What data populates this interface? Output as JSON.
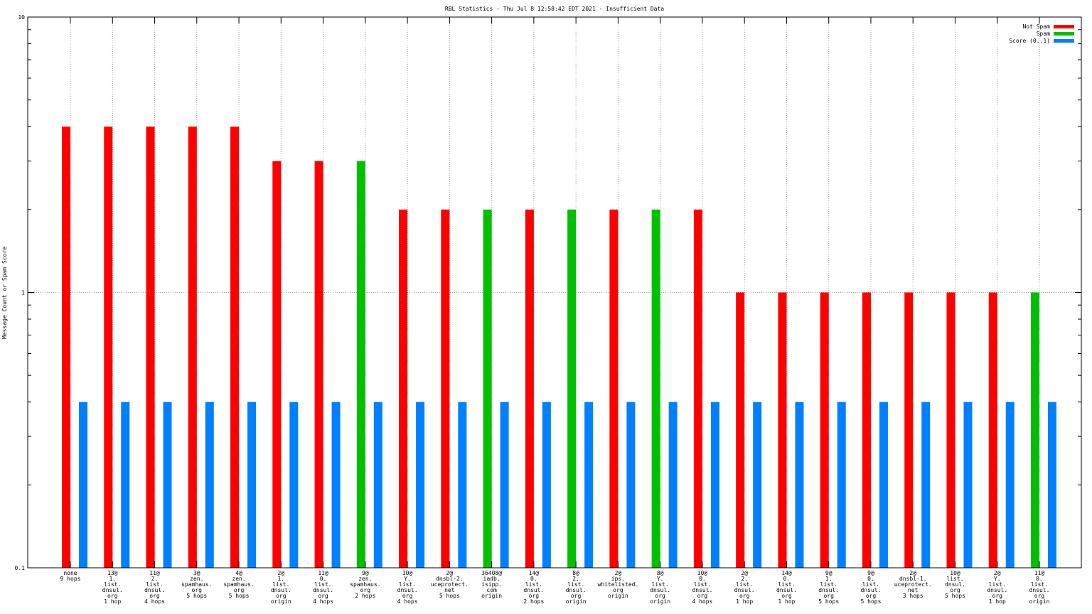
{
  "chart_data": {
    "type": "bar",
    "title": "RBL Statistics - Thu Jul  8 12:58:42 EDT 2021 - Insufficient Data",
    "ylabel": "Message Count or Spam Score",
    "xlabel": "",
    "yscale": "log",
    "ylim": [
      0.1,
      10
    ],
    "y_ticks": [
      "0.1",
      "1",
      "10"
    ],
    "grid": true,
    "legend_position": "top-right",
    "series_styles": [
      {
        "name": "Not Spam",
        "color": "#ff0000"
      },
      {
        "name": "Spam",
        "color": "#00c000"
      },
      {
        "name": "Score (0..1)",
        "color": "#0080ff"
      }
    ],
    "categories": [
      {
        "label": [
          "none",
          "9 hops"
        ],
        "count": 4,
        "class": "Not Spam",
        "score": 0.4
      },
      {
        "label": [
          "13@",
          "1.",
          "list.",
          "dnsul.",
          "org",
          "1 hop"
        ],
        "count": 4,
        "class": "Not Spam",
        "score": 0.4
      },
      {
        "label": [
          "11@",
          "2.",
          "list.",
          "dnsul.",
          "org",
          "4 hops"
        ],
        "count": 4,
        "class": "Not Spam",
        "score": 0.4
      },
      {
        "label": [
          "3@",
          "zen.",
          "spamhaus.",
          "org",
          "5 hops"
        ],
        "count": 4,
        "class": "Not Spam",
        "score": 0.4
      },
      {
        "label": [
          "4@",
          "zen.",
          "spamhaus.",
          "org",
          "5 hops"
        ],
        "count": 4,
        "class": "Not Spam",
        "score": 0.4
      },
      {
        "label": [
          "2@",
          "1.",
          "list.",
          "dnsul.",
          "org",
          "origin"
        ],
        "count": 3,
        "class": "Not Spam",
        "score": 0.4
      },
      {
        "label": [
          "11@",
          "0.",
          "list.",
          "dnsul.",
          "org",
          "4 hops"
        ],
        "count": 3,
        "class": "Not Spam",
        "score": 0.4
      },
      {
        "label": [
          "9@",
          "zen.",
          "spamhaus.",
          "org",
          "2 hops"
        ],
        "count": 3,
        "class": "Spam",
        "score": 0.4
      },
      {
        "label": [
          "10@",
          "Y.",
          "list.",
          "dnsul.",
          "org",
          "4 hops"
        ],
        "count": 2,
        "class": "Not Spam",
        "score": 0.4
      },
      {
        "label": [
          "2@",
          "dnsbl-2.",
          "uceprotect.",
          "net",
          "5 hops"
        ],
        "count": 2,
        "class": "Not Spam",
        "score": 0.4
      },
      {
        "label": [
          "36408@",
          "iadb.",
          "isipp.",
          "com",
          "origin"
        ],
        "count": 2,
        "class": "Spam",
        "score": 0.4
      },
      {
        "label": [
          "14@",
          "0.",
          "list.",
          "dnsul.",
          "org",
          "2 hops"
        ],
        "count": 2,
        "class": "Not Spam",
        "score": 0.4
      },
      {
        "label": [
          "8@",
          "2.",
          "list.",
          "dnsul.",
          "org",
          "origin"
        ],
        "count": 2,
        "class": "Spam",
        "score": 0.4
      },
      {
        "label": [
          "2@",
          "ips.",
          "whitelisted.",
          "org",
          "origin"
        ],
        "count": 2,
        "class": "Not Spam",
        "score": 0.4
      },
      {
        "label": [
          "8@",
          "Y.",
          "list.",
          "dnsul.",
          "org",
          "origin"
        ],
        "count": 2,
        "class": "Spam",
        "score": 0.4
      },
      {
        "label": [
          "10@",
          "0.",
          "list.",
          "dnsul.",
          "org",
          "4 hops"
        ],
        "count": 2,
        "class": "Not Spam",
        "score": 0.4
      },
      {
        "label": [
          "2@",
          "2.",
          "list.",
          "dnsul.",
          "org",
          "1 hop"
        ],
        "count": 1,
        "class": "Not Spam",
        "score": 0.4
      },
      {
        "label": [
          "14@",
          "0.",
          "list.",
          "dnsul.",
          "org",
          "1 hop"
        ],
        "count": 1,
        "class": "Not Spam",
        "score": 0.4
      },
      {
        "label": [
          "9@",
          "1.",
          "list.",
          "dnsul.",
          "org",
          "5 hops"
        ],
        "count": 1,
        "class": "Not Spam",
        "score": 0.4
      },
      {
        "label": [
          "9@",
          "0.",
          "list.",
          "dnsul.",
          "org",
          "5 hops"
        ],
        "count": 1,
        "class": "Not Spam",
        "score": 0.4
      },
      {
        "label": [
          "2@",
          "dnsbl-1.",
          "uceprotect.",
          "net",
          "3 hops"
        ],
        "count": 1,
        "class": "Not Spam",
        "score": 0.4
      },
      {
        "label": [
          "10@",
          "list.",
          "dnsul.",
          "org",
          "5 hops"
        ],
        "count": 1,
        "class": "Not Spam",
        "score": 0.4
      },
      {
        "label": [
          "2@",
          "Y.",
          "list.",
          "dnsul.",
          "org",
          "1 hop"
        ],
        "count": 1,
        "class": "Not Spam",
        "score": 0.4
      },
      {
        "label": [
          "11@",
          "0.",
          "list.",
          "dnsul.",
          "org",
          "origin"
        ],
        "count": 1,
        "class": "Spam",
        "score": 0.4
      }
    ]
  }
}
